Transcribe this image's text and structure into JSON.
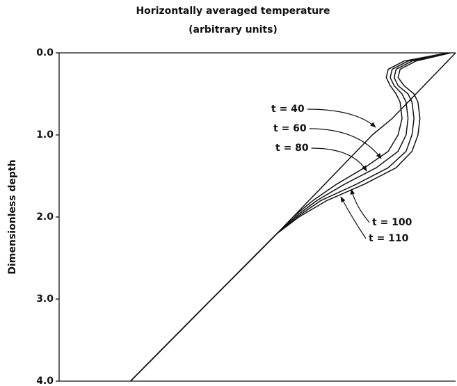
{
  "chart_data": {
    "type": "line",
    "title": "Horizontally averaged temperature",
    "subtitle": "(arbitrary units)",
    "ylabel": "Dimensionless depth",
    "y": [
      0,
      0.1,
      0.2,
      0.3,
      0.4,
      0.5,
      0.6,
      0.8,
      1.0,
      1.2,
      1.4,
      1.6,
      1.8,
      2.0,
      2.2,
      3.0,
      4.0
    ],
    "xlim": [
      0,
      1
    ],
    "ylim": [
      0,
      4
    ],
    "y_inverted": true,
    "yticks": [
      {
        "value": 0,
        "label": "0.0"
      },
      {
        "value": 1,
        "label": "1.0"
      },
      {
        "value": 2,
        "label": "2.0"
      },
      {
        "value": 3,
        "label": "3.0"
      },
      {
        "value": 4,
        "label": "4.0"
      }
    ],
    "series": [
      {
        "name": "t = 40",
        "color": "#111111",
        "values": [
          1.0,
          0.98,
          0.96,
          0.94,
          0.92,
          0.9,
          0.88,
          0.84,
          0.79,
          0.75,
          0.71,
          0.67,
          0.63,
          0.59,
          0.55,
          0.385,
          0.18
        ]
      },
      {
        "name": "t = 60",
        "color": "#111111",
        "values": [
          0.98,
          0.87,
          0.83,
          0.825,
          0.835,
          0.85,
          0.86,
          0.865,
          0.855,
          0.83,
          0.77,
          0.7,
          0.64,
          0.59,
          0.55,
          0.385,
          0.18
        ]
      },
      {
        "name": "t = 80",
        "color": "#111111",
        "values": [
          0.98,
          0.88,
          0.84,
          0.835,
          0.845,
          0.865,
          0.875,
          0.88,
          0.875,
          0.855,
          0.8,
          0.72,
          0.65,
          0.595,
          0.55,
          0.385,
          0.18
        ]
      },
      {
        "name": "t = 100",
        "color": "#111111",
        "values": [
          0.985,
          0.89,
          0.85,
          0.845,
          0.855,
          0.88,
          0.89,
          0.895,
          0.89,
          0.875,
          0.83,
          0.75,
          0.66,
          0.6,
          0.55,
          0.385,
          0.18
        ]
      },
      {
        "name": "t = 110",
        "color": "#111111",
        "values": [
          0.988,
          0.9,
          0.86,
          0.855,
          0.87,
          0.895,
          0.905,
          0.91,
          0.905,
          0.89,
          0.85,
          0.77,
          0.675,
          0.605,
          0.55,
          0.385,
          0.18
        ]
      }
    ]
  }
}
